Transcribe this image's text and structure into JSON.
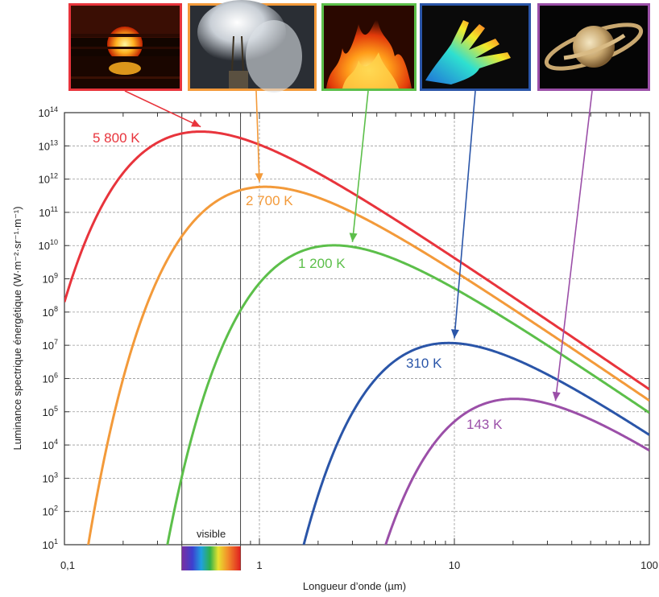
{
  "chart_data": {
    "type": "line",
    "xlabel": "Longueur d’onde (µm)",
    "ylabel": "Luminance spectrique énergétique (W·m⁻²·sr⁻¹·m⁻¹)",
    "xscale": "log",
    "yscale": "log",
    "xlim": [
      0.1,
      100
    ],
    "ylim": [
      10,
      100000000000000
    ],
    "grid": true,
    "x_ticks": [
      {
        "value": 0.1,
        "label": "0,1"
      },
      {
        "value": 1,
        "label": "1"
      },
      {
        "value": 10,
        "label": "10"
      },
      {
        "value": 100,
        "label": "100"
      }
    ],
    "y_ticks": [
      {
        "exp": 1,
        "base": "10",
        "sup": "1"
      },
      {
        "exp": 2,
        "base": "10",
        "sup": "2"
      },
      {
        "exp": 3,
        "base": "10",
        "sup": "3"
      },
      {
        "exp": 4,
        "base": "10",
        "sup": "4"
      },
      {
        "exp": 5,
        "base": "10",
        "sup": "5"
      },
      {
        "exp": 6,
        "base": "10",
        "sup": "6"
      },
      {
        "exp": 7,
        "base": "10",
        "sup": "7"
      },
      {
        "exp": 8,
        "base": "10",
        "sup": "8"
      },
      {
        "exp": 9,
        "base": "10",
        "sup": "9"
      },
      {
        "exp": 10,
        "base": "10",
        "sup": "10"
      },
      {
        "exp": 11,
        "base": "10",
        "sup": "11"
      },
      {
        "exp": 12,
        "base": "10",
        "sup": "12"
      },
      {
        "exp": 13,
        "base": "10",
        "sup": "13"
      },
      {
        "exp": 14,
        "base": "10",
        "sup": "14"
      }
    ],
    "visible_band": {
      "label": "visible",
      "from": 0.4,
      "to": 0.8
    },
    "series": [
      {
        "label": "5 800 K",
        "temperature": 5800,
        "color": "#e8343c",
        "image": "sunset",
        "arrow_target_x": 0.5
      },
      {
        "label": "2 700 K",
        "temperature": 2700,
        "color": "#f39a3a",
        "image": "light-bulb",
        "arrow_target_x": 1.0
      },
      {
        "label": "1 200 K",
        "temperature": 1200,
        "color": "#5cbf4a",
        "image": "fire",
        "arrow_target_x": 3.0
      },
      {
        "label": "310 K",
        "temperature": 310,
        "color": "#2a55a8",
        "image": "thermal-hand",
        "arrow_target_x": 10.0
      },
      {
        "label": "143 K",
        "temperature": 143,
        "color": "#9b4fa8",
        "image": "saturn",
        "arrow_target_x": 33.0
      }
    ]
  }
}
